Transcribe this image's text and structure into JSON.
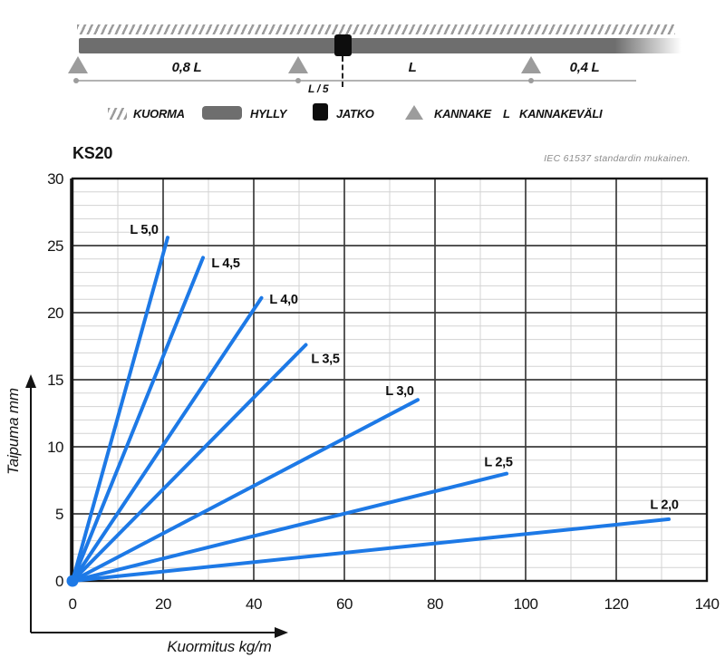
{
  "colors": {
    "blue": "#1d79e6",
    "bar_gray": "#6e6e6e",
    "support_gray": "#9c9c9c",
    "joint_black": "#0d0d0d",
    "grid_minor": "#d3d3d3",
    "grid_major": "#3c3c3c",
    "border": "#141414",
    "text": "#141414",
    "muted_text": "#8c8c8c"
  },
  "schematic": {
    "spans": {
      "left": "0,8 L",
      "middle": "L",
      "right": "0,4 L",
      "joint_offset": "L / 5"
    }
  },
  "legend": {
    "items": [
      {
        "icon": "hatch-icon",
        "label": "KUORMA"
      },
      {
        "icon": "shelf-icon",
        "label": "HYLLY"
      },
      {
        "icon": "joint-icon",
        "label": "JATKO"
      },
      {
        "icon": "support-icon",
        "label": "KANNAKE"
      },
      {
        "icon": "span-letter",
        "symbol": "L",
        "label": "KANNAKEVÄLI"
      }
    ]
  },
  "header": {
    "title": "KS20",
    "standard_note": "IEC 61537 standardin mukainen."
  },
  "chart_data": {
    "type": "line",
    "title": "KS20",
    "xlabel": "Kuormitus kg/m",
    "ylabel": "Taipuma mm",
    "xlim": [
      0,
      140
    ],
    "ylim": [
      0,
      30
    ],
    "x_ticks": [
      0,
      20,
      40,
      60,
      80,
      100,
      120,
      140
    ],
    "y_ticks": [
      0,
      5,
      10,
      15,
      20,
      25,
      30
    ],
    "x_minor_step": 10,
    "y_minor_step": 1,
    "grid": true,
    "legend_position": "inline-labels",
    "series": [
      {
        "name": "L 5,0",
        "x": [
          0,
          21.0
        ],
        "y": [
          0,
          25.6
        ],
        "label_x": 15.8,
        "label_y": 26.2
      },
      {
        "name": "L 4,5",
        "x": [
          0,
          28.8
        ],
        "y": [
          0,
          24.1
        ],
        "label_x": 33.8,
        "label_y": 23.7
      },
      {
        "name": "L 4,0",
        "x": [
          0,
          41.7
        ],
        "y": [
          0,
          21.1
        ],
        "label_x": 46.6,
        "label_y": 21.0
      },
      {
        "name": "L 3,5",
        "x": [
          0,
          51.5
        ],
        "y": [
          0,
          17.6
        ],
        "label_x": 55.8,
        "label_y": 16.6
      },
      {
        "name": "L 3,0",
        "x": [
          0,
          76.2
        ],
        "y": [
          0,
          13.5
        ],
        "label_x": 72.2,
        "label_y": 14.2
      },
      {
        "name": "L 2,5",
        "x": [
          0,
          95.8
        ],
        "y": [
          0,
          8.0
        ],
        "label_x": 94.0,
        "label_y": 8.9
      },
      {
        "name": "L 2,0",
        "x": [
          0,
          131.6
        ],
        "y": [
          0,
          4.6
        ],
        "label_x": 130.6,
        "label_y": 5.7
      }
    ]
  }
}
